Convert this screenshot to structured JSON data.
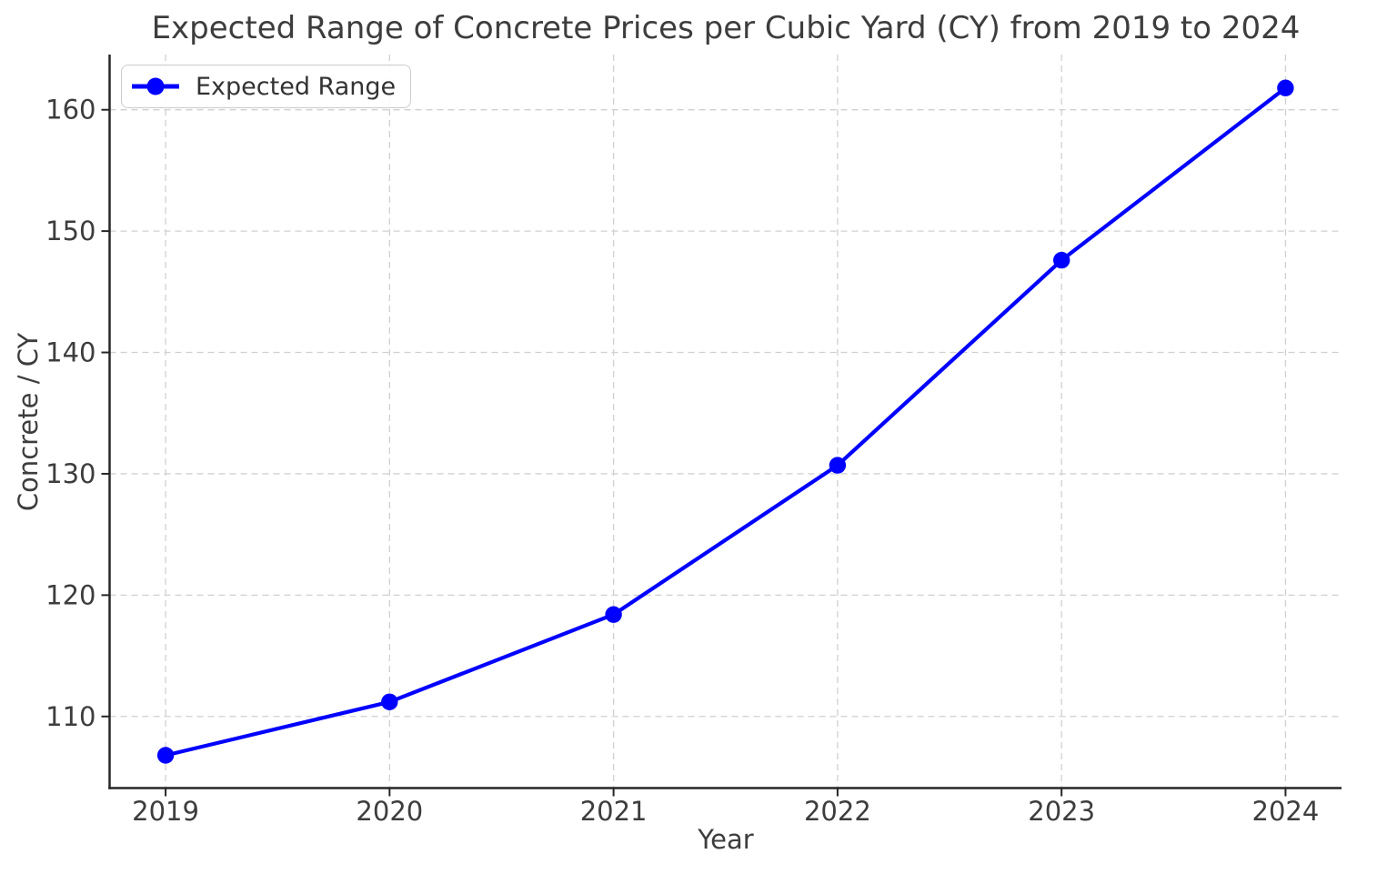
{
  "chart_data": {
    "type": "line",
    "title": "Expected Range of Concrete Prices per Cubic Yard (CY) from 2019 to 2024",
    "xlabel": "Year",
    "ylabel": "Concrete / CY",
    "x": [
      2019,
      2020,
      2021,
      2022,
      2023,
      2024
    ],
    "series": [
      {
        "name": "Expected Range",
        "values": [
          106.8,
          111.2,
          118.4,
          130.7,
          147.6,
          161.8
        ],
        "color": "#0000ff",
        "marker": "circle",
        "line_style": "solid"
      }
    ],
    "xticks": [
      "2019",
      "2020",
      "2021",
      "2022",
      "2023",
      "2024"
    ],
    "xtick_values": [
      2019,
      2020,
      2021,
      2022,
      2023,
      2024
    ],
    "yticks": [
      "110",
      "120",
      "130",
      "140",
      "150",
      "160"
    ],
    "ytick_values": [
      110,
      120,
      130,
      140,
      150,
      160
    ],
    "xlim": [
      2018.75,
      2024.25
    ],
    "ylim": [
      104.1,
      164.55
    ],
    "grid": true,
    "grid_style": "dashed",
    "legend": {
      "label": "Expected Range",
      "position": "upper-left"
    }
  },
  "colors": {
    "line": "#0000ff",
    "text": "#3d3d3d",
    "spine": "#262626",
    "grid": "#d0d0d0",
    "legend_border": "#cbcbcb"
  }
}
